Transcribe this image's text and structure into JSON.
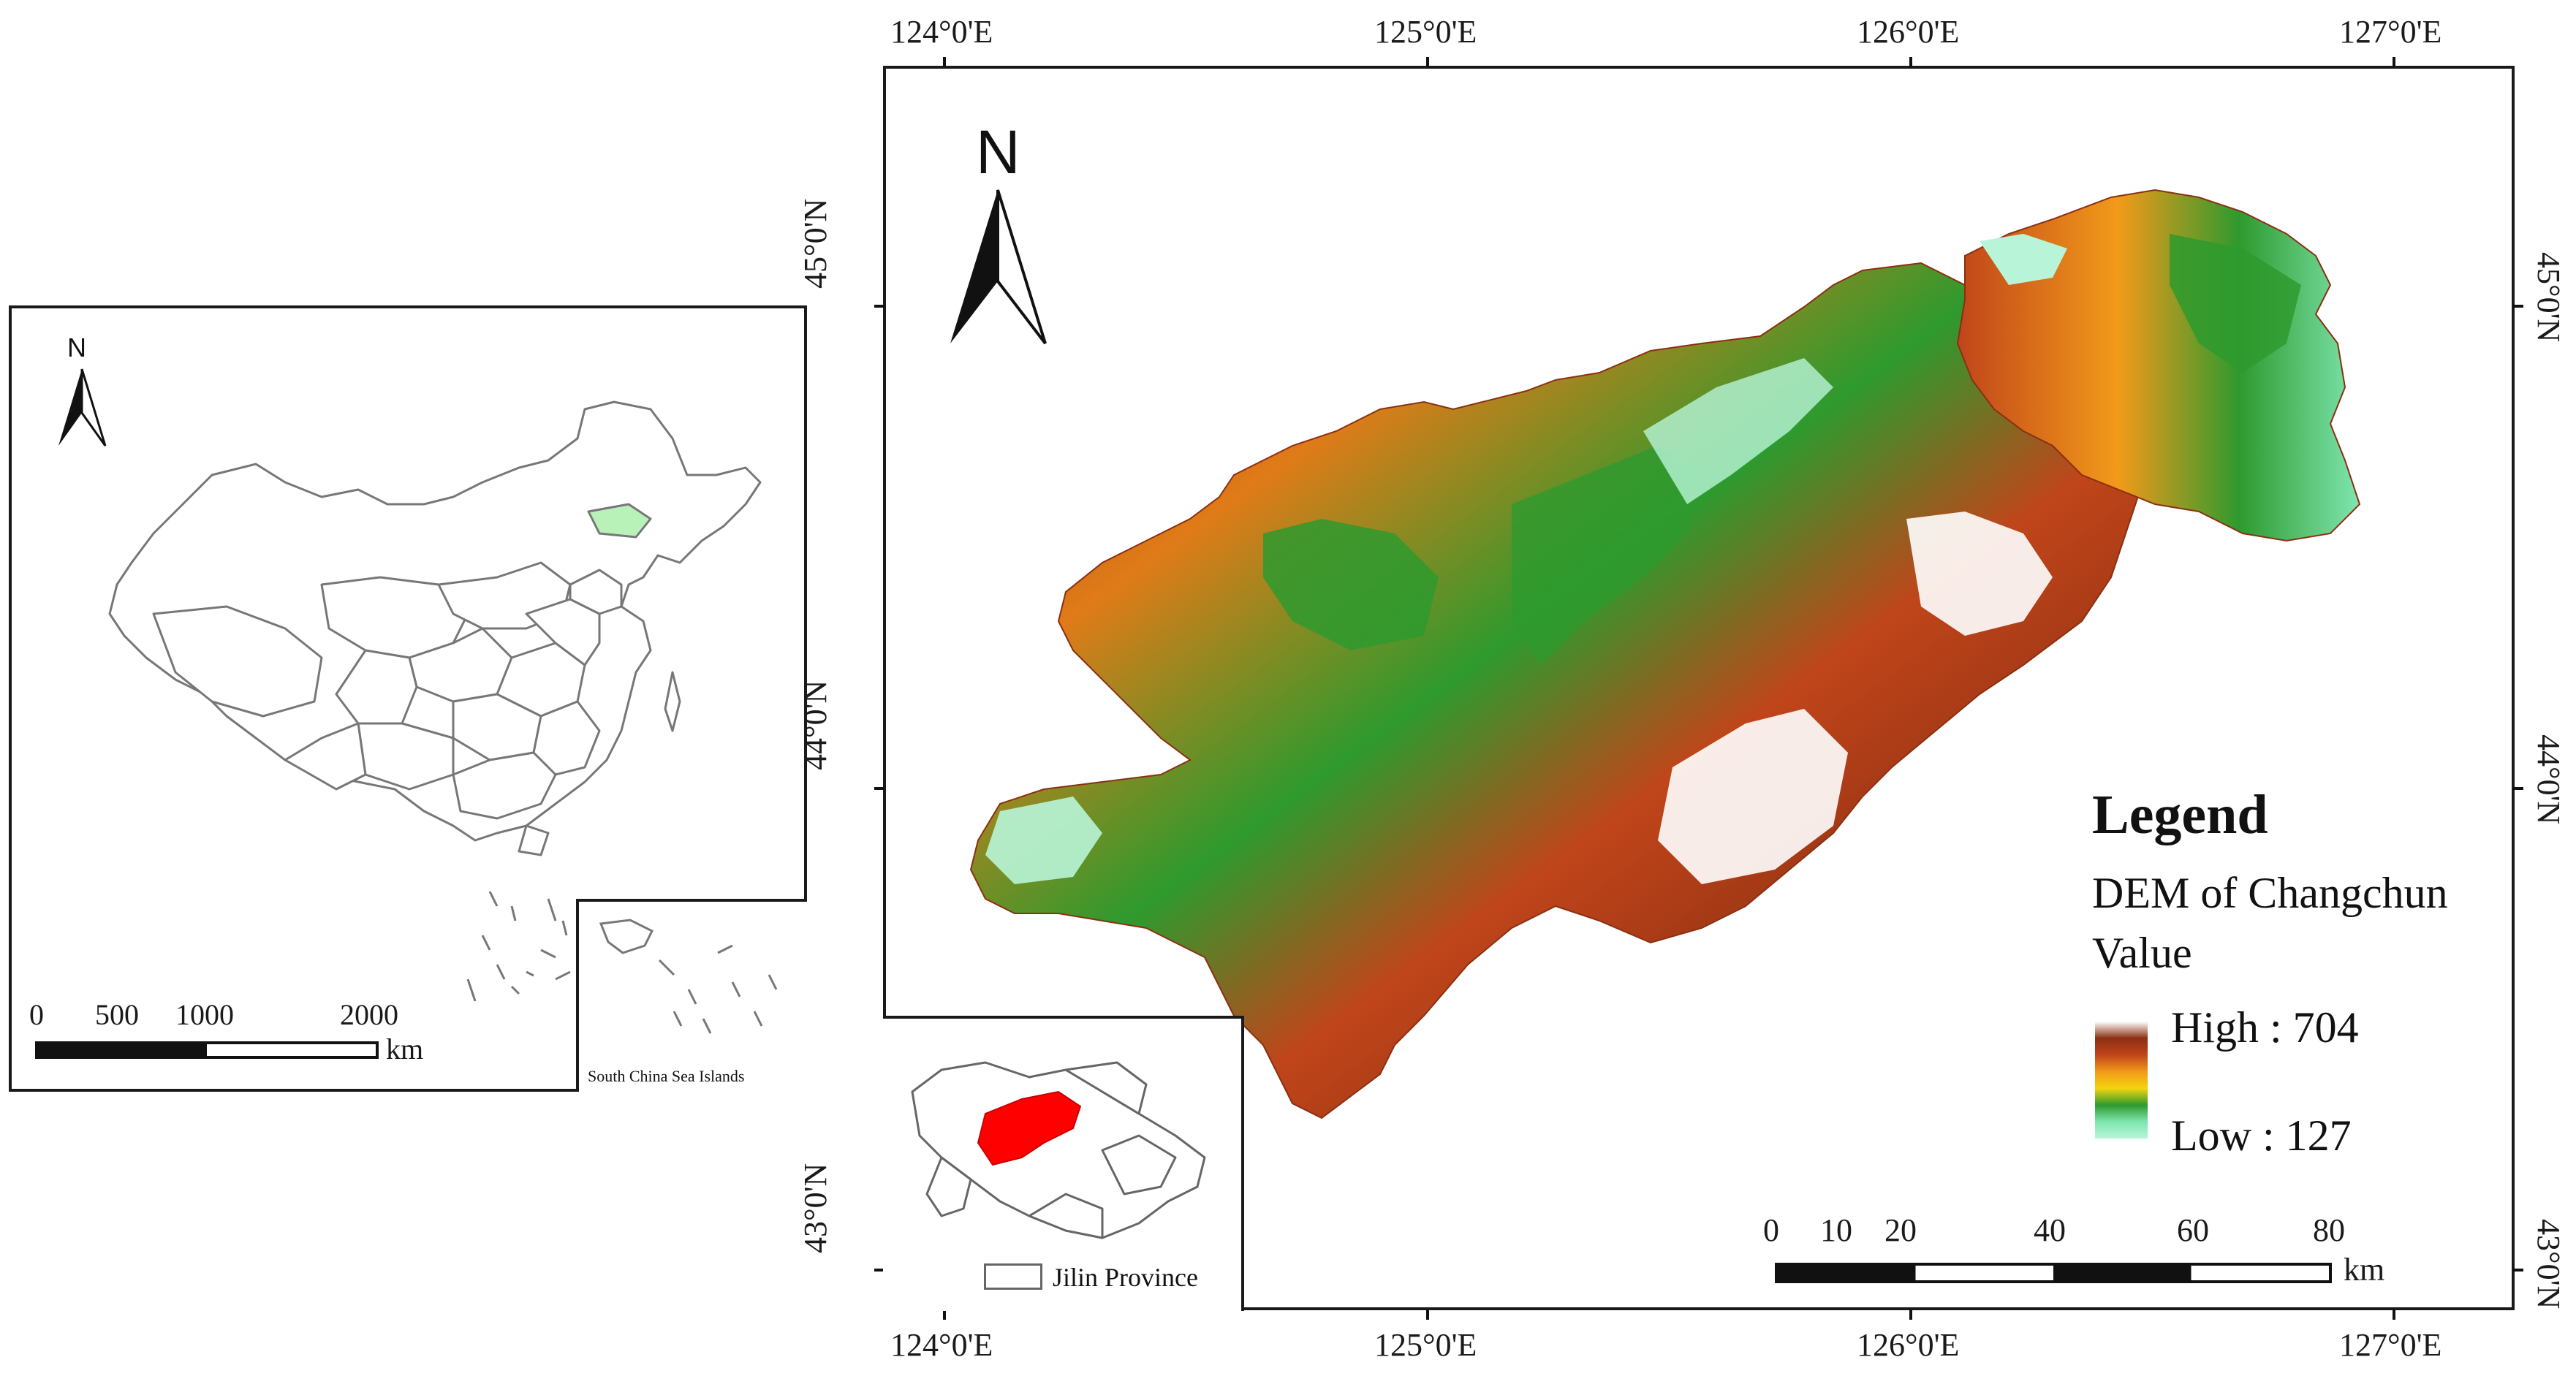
{
  "china_inset": {
    "north_label": "N",
    "scale_ticks": [
      "0",
      "500",
      "1000",
      "2000"
    ],
    "scale_unit": "km",
    "sub_inset_label": "South China Sea Islands",
    "highlight_color": "#b9f2b9"
  },
  "main_map": {
    "north_label": "N",
    "top_axis": [
      "124°0'E",
      "125°0'E",
      "126°0'E",
      "127°0'E"
    ],
    "bottom_axis": [
      "124°0'E",
      "125°0'E",
      "126°0'E",
      "127°0'E"
    ],
    "left_axis": [
      "45°0'N",
      "44°0'N",
      "43°0'N"
    ],
    "right_axis": [
      "45°0'N",
      "44°0'N",
      "43°0'N"
    ],
    "legend": {
      "title": "Legend",
      "layer": "DEM of Changchun",
      "field": "Value",
      "high": "High : 704",
      "low": "Low : 127",
      "ramp_colors": [
        "#ffffff",
        "#8b2f12",
        "#c0451a",
        "#f29a1a",
        "#f4d40f",
        "#2e9a2e",
        "#7fe6b0",
        "#b8f5d8"
      ]
    },
    "scale_ticks": [
      "0",
      "10",
      "20",
      "40",
      "60",
      "80"
    ],
    "scale_unit": "km",
    "jilin_inset": {
      "legend_label": "Jilin Province",
      "highlight_color": "#ff0000"
    }
  }
}
